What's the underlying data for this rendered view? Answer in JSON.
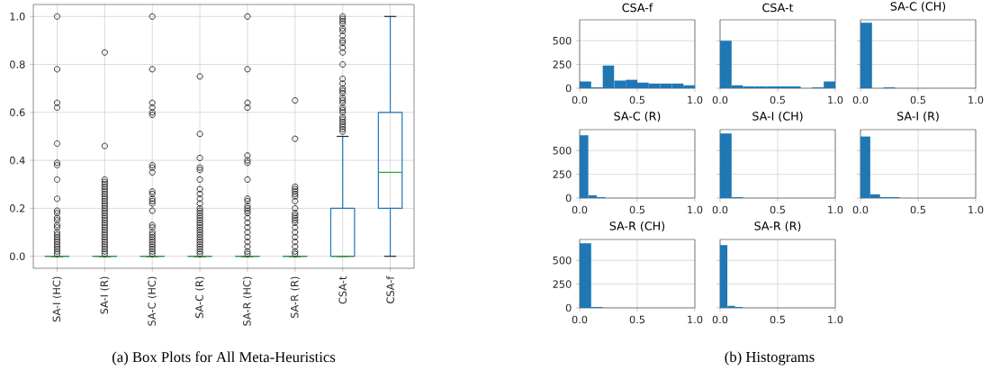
{
  "chart_data": [
    {
      "type": "box",
      "categories": [
        "SA-I (HC)",
        "SA-I (R)",
        "SA-C (HC)",
        "SA-C (R)",
        "SA-R (HC)",
        "SA-R (R)",
        "CSA-t",
        "CSA-f"
      ],
      "ylim": [
        -0.05,
        1.05
      ],
      "yticks": [
        {
          "value": 0,
          "label": "0.0"
        },
        {
          "value": 0.2,
          "label": "0.2"
        },
        {
          "value": 0.4,
          "label": "0.4"
        },
        {
          "value": 0.6,
          "label": "0.6"
        },
        {
          "value": 0.8,
          "label": "0.8"
        },
        {
          "value": 1,
          "label": "1.0"
        }
      ],
      "grid": true,
      "annotations": [
        "(a) Box Plots for All Meta-Heuristics"
      ],
      "series": [
        {
          "color": "#1f77b4",
          "boxes": [
            {
              "low": 0,
              "q1": 0,
              "median": 0,
              "q3": 0,
              "high": 0,
              "outliers": [
                1.0,
                0.78,
                0.64,
                0.62,
                0.47,
                0.39,
                0.38,
                0.32,
                0.24,
                0.19,
                0.18,
                0.16,
                0.15,
                0.13,
                0.12,
                0.1,
                0.09,
                0.08,
                0.07,
                0.06,
                0.05,
                0.04,
                0.03,
                0.02,
                0.01
              ]
            },
            {
              "low": 0,
              "q1": 0,
              "median": 0,
              "q3": 0,
              "high": 0,
              "outliers": [
                0.85,
                0.46,
                0.32,
                0.31,
                0.3,
                0.29,
                0.28,
                0.27,
                0.26,
                0.25,
                0.24,
                0.23,
                0.22,
                0.21,
                0.2,
                0.19,
                0.18,
                0.17,
                0.16,
                0.15,
                0.14,
                0.13,
                0.12,
                0.11,
                0.1,
                0.09,
                0.08,
                0.07,
                0.06,
                0.05,
                0.04,
                0.03,
                0.02,
                0.01
              ]
            },
            {
              "low": 0,
              "q1": 0,
              "median": 0,
              "q3": 0,
              "high": 0,
              "outliers": [
                1.0,
                0.78,
                0.64,
                0.62,
                0.6,
                0.59,
                0.38,
                0.37,
                0.35,
                0.27,
                0.26,
                0.24,
                0.23,
                0.22,
                0.19,
                0.13,
                0.12,
                0.1,
                0.09,
                0.08,
                0.07,
                0.06,
                0.05,
                0.04,
                0.03,
                0.02,
                0.01
              ]
            },
            {
              "low": 0,
              "q1": 0,
              "median": 0,
              "q3": 0,
              "high": 0,
              "outliers": [
                0.75,
                0.51,
                0.41,
                0.37,
                0.36,
                0.32,
                0.28,
                0.26,
                0.24,
                0.22,
                0.2,
                0.19,
                0.18,
                0.17,
                0.16,
                0.15,
                0.14,
                0.13,
                0.12,
                0.11,
                0.1,
                0.09,
                0.08,
                0.07,
                0.06,
                0.05,
                0.04,
                0.03,
                0.02,
                0.01
              ]
            },
            {
              "low": 0,
              "q1": 0,
              "median": 0,
              "q3": 0,
              "high": 0,
              "outliers": [
                1.0,
                0.78,
                0.64,
                0.62,
                0.42,
                0.4,
                0.39,
                0.32,
                0.24,
                0.23,
                0.21,
                0.2,
                0.19,
                0.18,
                0.16,
                0.14,
                0.12,
                0.1,
                0.08,
                0.06,
                0.04,
                0.02,
                0.01
              ]
            },
            {
              "low": 0,
              "q1": 0,
              "median": 0,
              "q3": 0,
              "high": 0,
              "outliers": [
                0.65,
                0.49,
                0.29,
                0.28,
                0.27,
                0.26,
                0.25,
                0.23,
                0.2,
                0.18,
                0.17,
                0.16,
                0.15,
                0.14,
                0.12,
                0.1,
                0.08,
                0.06,
                0.04,
                0.02,
                0.01
              ]
            },
            {
              "low": 0,
              "q1": 0,
              "median": 0,
              "q3": 0.2,
              "high": 0.5,
              "outliers": [
                1.0,
                0.99,
                0.98,
                0.97,
                0.95,
                0.94,
                0.92,
                0.9,
                0.89,
                0.87,
                0.85,
                0.8,
                0.74,
                0.72,
                0.7,
                0.69,
                0.68,
                0.66,
                0.65,
                0.64,
                0.62,
                0.61,
                0.6,
                0.58,
                0.57,
                0.56,
                0.55,
                0.54,
                0.53,
                0.52
              ]
            },
            {
              "low": 0,
              "q1": 0.2,
              "median": 0.35,
              "q3": 0.6,
              "high": 1.0
            }
          ]
        }
      ]
    },
    {
      "type": "histogram",
      "title": "CSA-f",
      "bins": [
        0,
        0.1,
        0.2,
        0.3,
        0.4,
        0.5,
        0.6,
        0.7,
        0.8,
        0.9,
        1.0
      ],
      "values": [
        70,
        10,
        240,
        80,
        90,
        60,
        50,
        50,
        50,
        30
      ],
      "color": "#1f77b4",
      "xlim": [
        0,
        1
      ],
      "ylim": [
        0,
        720
      ],
      "xticks": [
        {
          "value": 0,
          "label": "0.0"
        },
        {
          "value": 0.5,
          "label": "0.5"
        },
        {
          "value": 1,
          "label": "1.0"
        }
      ],
      "yticks": [
        0,
        250,
        500
      ],
      "grid": true,
      "annotations": [
        "(b) Histograms"
      ]
    },
    {
      "type": "histogram",
      "title": "CSA-t",
      "bins": [
        0,
        0.1,
        0.2,
        0.3,
        0.4,
        0.5,
        0.6,
        0.7,
        0.8,
        0.9,
        1.0
      ],
      "values": [
        500,
        30,
        20,
        20,
        20,
        20,
        20,
        0,
        10,
        70
      ],
      "color": "#1f77b4",
      "xlim": [
        0,
        1
      ],
      "ylim": [
        0,
        720
      ],
      "xticks": [
        {
          "value": 0,
          "label": "0.0"
        },
        {
          "value": 0.5,
          "label": "0.5"
        },
        {
          "value": 1,
          "label": "1.0"
        }
      ],
      "yticks": [
        0,
        250,
        500
      ],
      "grid": true,
      "tick_labels": "x"
    },
    {
      "type": "histogram",
      "title": "SA-C (CH)",
      "bins": [
        0,
        0.1,
        0.2,
        0.3,
        0.4,
        0.5,
        0.6,
        0.7,
        0.8,
        0.9,
        1.0
      ],
      "values": [
        690,
        0,
        10,
        0,
        0,
        0,
        0,
        0,
        0,
        0
      ],
      "color": "#1f77b4",
      "xlim": [
        0,
        1
      ],
      "ylim": [
        0,
        720
      ],
      "xticks": [
        {
          "value": 0,
          "label": "0.0"
        },
        {
          "value": 0.5,
          "label": "0.5"
        },
        {
          "value": 1,
          "label": "1.0"
        }
      ],
      "yticks": [
        0,
        250,
        500
      ],
      "grid": true,
      "tick_labels": "x"
    },
    {
      "type": "histogram",
      "title": "SA-C (R)",
      "bins": [
        0,
        0.075,
        0.15,
        0.225,
        0.3,
        0.375,
        0.45,
        0.525,
        0.6,
        0.675,
        0.75
      ],
      "values": [
        660,
        30,
        10,
        0,
        0,
        0,
        0,
        0,
        0,
        0
      ],
      "color": "#1f77b4",
      "xlim": [
        0,
        1
      ],
      "ylim": [
        0,
        720
      ],
      "xticks": [
        {
          "value": 0,
          "label": "0.0"
        },
        {
          "value": 0.5,
          "label": "0.5"
        },
        {
          "value": 1,
          "label": "1.0"
        }
      ],
      "yticks": [
        0,
        250,
        500
      ],
      "grid": true
    },
    {
      "type": "histogram",
      "title": "SA-I (CH)",
      "bins": [
        0,
        0.1,
        0.2,
        0.3,
        0.4,
        0.5,
        0.6,
        0.7,
        0.8,
        0.9,
        1.0
      ],
      "values": [
        680,
        10,
        0,
        0,
        0,
        0,
        0,
        0,
        0,
        0
      ],
      "color": "#1f77b4",
      "xlim": [
        0,
        1
      ],
      "ylim": [
        0,
        720
      ],
      "xticks": [
        {
          "value": 0,
          "label": "0.0"
        },
        {
          "value": 0.5,
          "label": "0.5"
        },
        {
          "value": 1,
          "label": "1.0"
        }
      ],
      "yticks": [
        0,
        250,
        500
      ],
      "grid": true,
      "tick_labels": "x"
    },
    {
      "type": "histogram",
      "title": "SA-I (R)",
      "bins": [
        0,
        0.085,
        0.17,
        0.255,
        0.34,
        0.425,
        0.51,
        0.595,
        0.68,
        0.765,
        0.85
      ],
      "values": [
        650,
        40,
        10,
        10,
        0,
        0,
        0,
        0,
        0,
        0
      ],
      "color": "#1f77b4",
      "xlim": [
        0,
        1
      ],
      "ylim": [
        0,
        720
      ],
      "xticks": [
        {
          "value": 0,
          "label": "0.0"
        },
        {
          "value": 0.5,
          "label": "0.5"
        },
        {
          "value": 1,
          "label": "1.0"
        }
      ],
      "yticks": [
        0,
        250,
        500
      ],
      "grid": true,
      "tick_labels": "x"
    },
    {
      "type": "histogram",
      "title": "SA-R (CH)",
      "bins": [
        0,
        0.1,
        0.2,
        0.3,
        0.4,
        0.5,
        0.6,
        0.7,
        0.8,
        0.9,
        1.0
      ],
      "values": [
        680,
        10,
        0,
        0,
        0,
        0,
        0,
        0,
        0,
        0
      ],
      "color": "#1f77b4",
      "xlim": [
        0,
        1
      ],
      "ylim": [
        0,
        720
      ],
      "xticks": [
        {
          "value": 0,
          "label": "0.0"
        },
        {
          "value": 0.5,
          "label": "0.5"
        },
        {
          "value": 1,
          "label": "1.0"
        }
      ],
      "yticks": [
        0,
        250,
        500
      ],
      "grid": true
    },
    {
      "type": "histogram",
      "title": "SA-R (R)",
      "bins": [
        0,
        0.065,
        0.13,
        0.195,
        0.26,
        0.325,
        0.39,
        0.455,
        0.52,
        0.585,
        0.65
      ],
      "values": [
        660,
        20,
        10,
        0,
        0,
        0,
        0,
        0,
        0,
        0
      ],
      "color": "#1f77b4",
      "xlim": [
        0,
        1
      ],
      "ylim": [
        0,
        720
      ],
      "xticks": [
        {
          "value": 0,
          "label": "0.0"
        },
        {
          "value": 0.5,
          "label": "0.5"
        },
        {
          "value": 1,
          "label": "1.0"
        }
      ],
      "yticks": [
        0,
        250,
        500
      ],
      "grid": true,
      "tick_labels": "x"
    }
  ]
}
